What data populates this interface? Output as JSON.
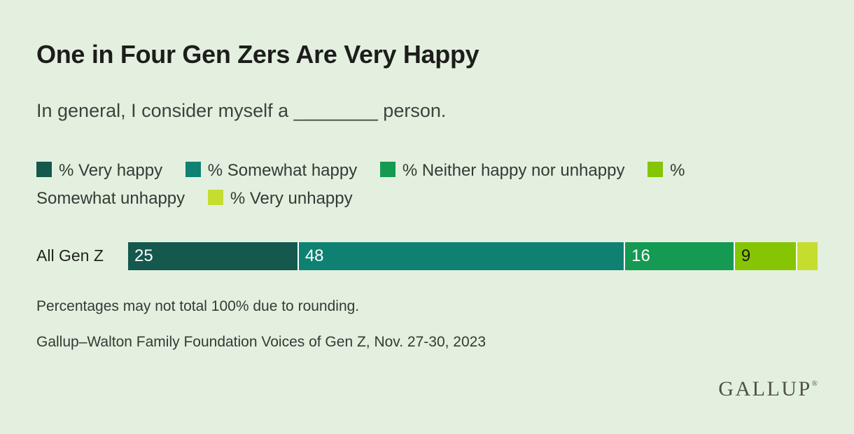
{
  "page": {
    "title": "One in Four Gen Zers Are Very Happy",
    "subtitle": "In general, I consider myself a ________ person.",
    "footnote": "Percentages may not total 100% due to rounding.",
    "source": "Gallup–Walton Family Foundation Voices of Gen Z, Nov. 27-30, 2023",
    "brand": "GALLUP",
    "brand_registered": "®"
  },
  "colors": {
    "background": "#e3f0df",
    "title_text": "#1d1d1b",
    "body_text": "#343a36",
    "segment_gap": "#ffffff",
    "logo_text": "#51504c"
  },
  "chart_data": {
    "type": "bar",
    "subtype": "stacked-horizontal",
    "title": "One in Four Gen Zers Are Very Happy",
    "subtitle": "In general, I consider myself a ________ person.",
    "categories": [
      "All Gen Z"
    ],
    "legend_position": "top",
    "grid": false,
    "xlim": [
      0,
      101
    ],
    "series": [
      {
        "name": "% Very happy",
        "value": 25,
        "label": "25",
        "color": "#14584e",
        "label_color": "#ffffff",
        "label_shown": true
      },
      {
        "name": "% Somewhat happy",
        "value": 48,
        "label": "48",
        "color": "#0e8173",
        "label_color": "#ffffff",
        "label_shown": true
      },
      {
        "name": "% Neither happy nor unhappy",
        "value": 16,
        "label": "16",
        "color": "#149a52",
        "label_color": "#ffffff",
        "label_shown": true
      },
      {
        "name": "% Somewhat unhappy",
        "value": 9,
        "label": "9",
        "color": "#85c503",
        "label_color": "#1a1a1a",
        "label_shown": true
      },
      {
        "name": "% Very unhappy",
        "value": 3,
        "label": "",
        "color": "#c5dd2f",
        "label_color": "#1a1a1a",
        "label_shown": false
      }
    ]
  }
}
